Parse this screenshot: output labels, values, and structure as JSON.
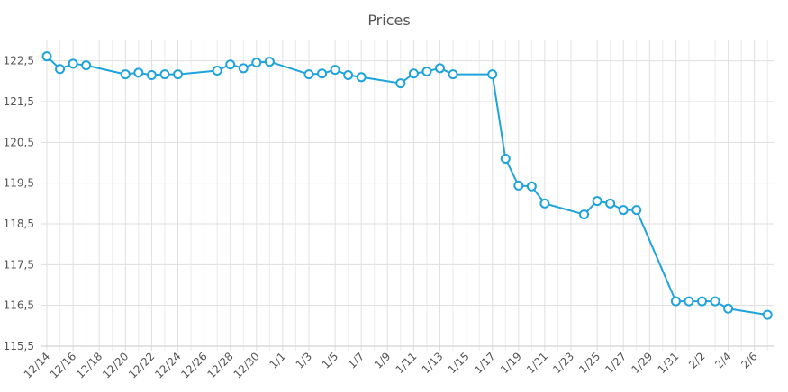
{
  "chart_data": {
    "type": "line",
    "title": "Prices",
    "xlabel": "",
    "ylabel": "",
    "x_tick_labels": [
      "12/14",
      "12/16",
      "12/18",
      "12/20",
      "12/22",
      "12/24",
      "12/26",
      "12/28",
      "12/30",
      "1/1",
      "1/3",
      "1/5",
      "1/7",
      "1/9",
      "1/11",
      "1/13",
      "1/15",
      "1/17",
      "1/19",
      "1/21",
      "1/23",
      "1/25",
      "1/27",
      "1/29",
      "1/31",
      "2/2",
      "2/4",
      "2/6"
    ],
    "y_ticks": [
      115.5,
      116.5,
      117.5,
      118.5,
      119.5,
      120.5,
      121.5,
      122.5
    ],
    "y_tick_labels": [
      "115,5",
      "116,5",
      "117,5",
      "118,5",
      "119,5",
      "120,5",
      "121,5",
      "122,5"
    ],
    "xlim": [
      "12/14",
      "2/7"
    ],
    "ylim": [
      115.5,
      123
    ],
    "grid": true,
    "color": "#1fa3dc",
    "series": [
      {
        "x": [
          "12/14",
          "12/15",
          "12/16",
          "12/17",
          "12/20",
          "12/21",
          "12/22",
          "12/23",
          "12/24",
          "12/27",
          "12/28",
          "12/29",
          "12/30",
          "12/31",
          "1/3",
          "1/4",
          "1/5",
          "1/6",
          "1/7",
          "1/10",
          "1/11",
          "1/12",
          "1/13",
          "1/14",
          "1/17",
          "1/18",
          "1/19",
          "1/20",
          "1/21",
          "1/24",
          "1/25",
          "1/26",
          "1/27",
          "1/28",
          "1/31",
          "2/1",
          "2/2",
          "2/3",
          "2/4",
          "2/7"
        ],
        "values": [
          122.61,
          122.3,
          122.43,
          122.39,
          122.17,
          122.21,
          122.15,
          122.17,
          122.17,
          122.26,
          122.41,
          122.32,
          122.46,
          122.48,
          122.17,
          122.19,
          122.28,
          122.15,
          122.1,
          121.95,
          122.19,
          122.24,
          122.32,
          122.17,
          122.17,
          120.1,
          119.44,
          119.42,
          119.0,
          118.73,
          119.06,
          119.0,
          118.84,
          118.84,
          116.6,
          116.6,
          116.6,
          116.6,
          116.42,
          116.27
        ]
      }
    ]
  }
}
